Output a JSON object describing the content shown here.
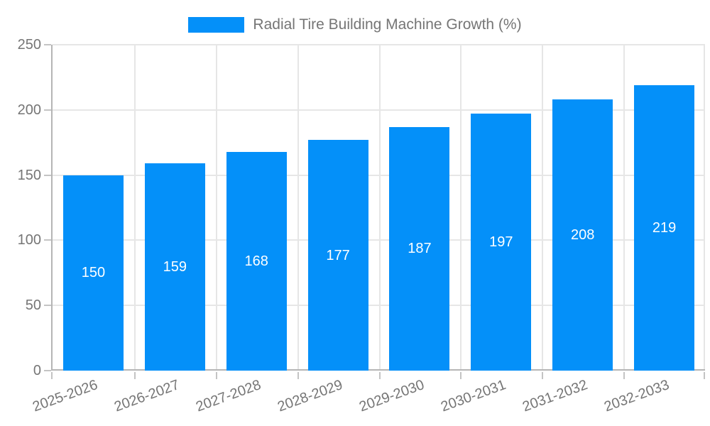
{
  "legend": {
    "label": "Radial Tire Building Machine Growth (%)"
  },
  "colors": {
    "bar": "#0490f9",
    "grid": "#e6e6e6",
    "axis": "#b5b5b5",
    "tick": "#c4c4c4",
    "text": "#757575",
    "value_label": "#ffffff",
    "background": "#ffffff"
  },
  "chart_data": {
    "type": "bar",
    "title": "Radial Tire Building Machine Growth (%)",
    "categories": [
      "2025-2026",
      "2026-2027",
      "2027-2028",
      "2028-2029",
      "2029-2030",
      "2030-2031",
      "2031-2032",
      "2032-2033"
    ],
    "values": [
      150,
      159,
      168,
      177,
      187,
      197,
      208,
      219
    ],
    "xlabel": "",
    "ylabel": "",
    "ylim": [
      0,
      250
    ],
    "yticks": [
      0,
      50,
      100,
      150,
      200,
      250
    ],
    "grid": true,
    "legend_position": "top-center",
    "bar_label_position": "inside-center",
    "x_label_rotation_deg": -20
  }
}
